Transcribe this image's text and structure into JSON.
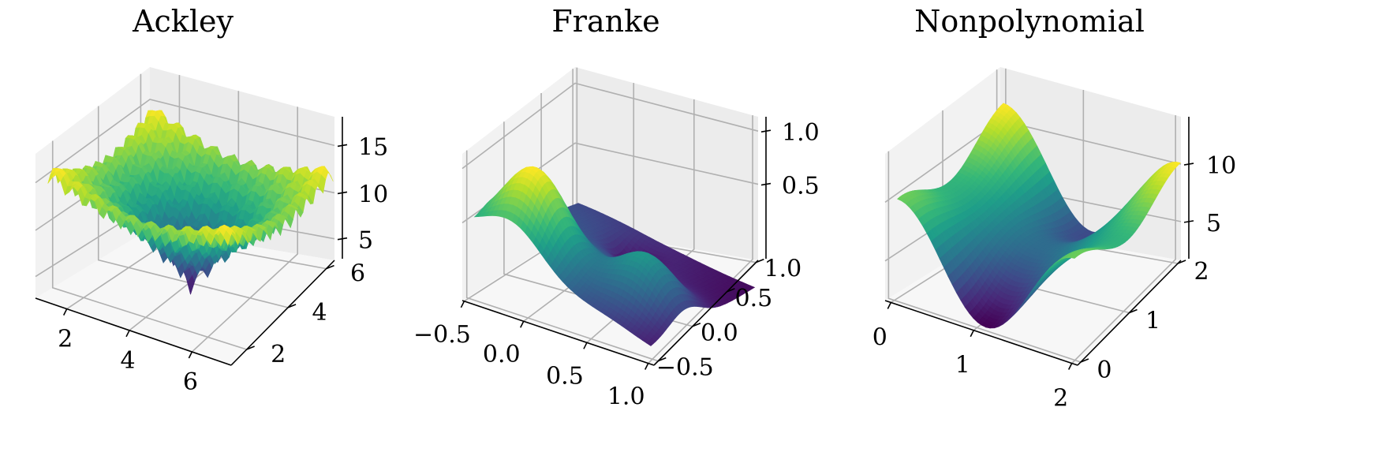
{
  "colormap": "viridis",
  "chart_data": [
    {
      "type": "surface3d",
      "title": "Ackley",
      "surface": "ackley",
      "x_ticks": [
        "2",
        "4",
        "6"
      ],
      "y_ticks": [
        "2",
        "4",
        "6"
      ],
      "z_ticks": [
        "5",
        "10",
        "15"
      ],
      "x_range": [
        0.5,
        7.5
      ],
      "y_range": [
        0.5,
        7.5
      ],
      "z_range": [
        3,
        17
      ]
    },
    {
      "type": "surface3d",
      "title": "Franke",
      "surface": "franke",
      "x_ticks": [
        "−0.5",
        "0.0",
        "0.5",
        "1.0"
      ],
      "y_ticks": [
        "−0.5",
        "0.0",
        "0.5",
        "1.0"
      ],
      "z_ticks": [
        "0.5",
        "1.0"
      ],
      "x_range": [
        -0.5,
        1.0
      ],
      "y_range": [
        -0.5,
        1.0
      ],
      "z_range": [
        0.0,
        1.25
      ]
    },
    {
      "type": "surface3d",
      "title": "Nonpolynomial",
      "surface": "nonpolynomial",
      "x_ticks": [
        "0",
        "1",
        "2"
      ],
      "y_ticks": [
        "0",
        "1",
        "2"
      ],
      "z_ticks": [
        "5",
        "10"
      ],
      "x_range": [
        0,
        2
      ],
      "y_range": [
        0,
        2
      ],
      "z_range": [
        0,
        14
      ]
    }
  ]
}
